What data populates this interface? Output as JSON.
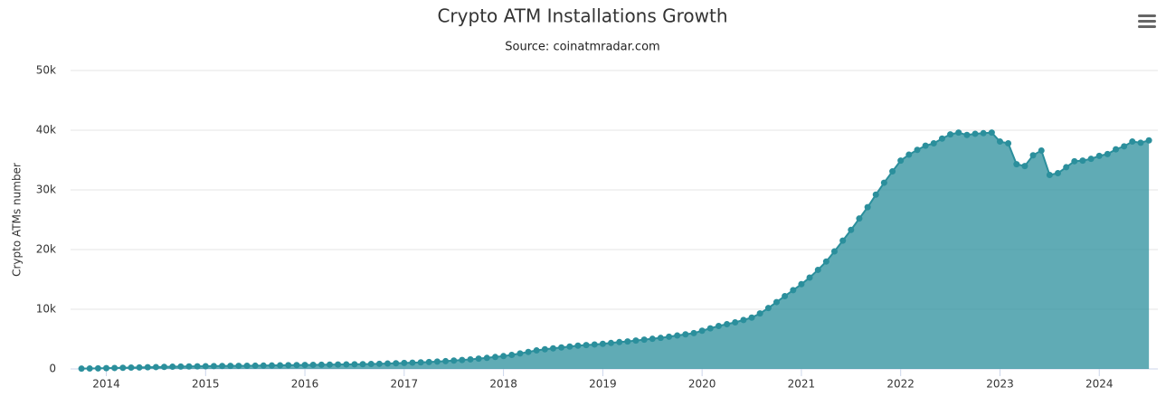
{
  "chart_data": {
    "type": "area",
    "title": "Crypto ATM Installations Growth",
    "subtitle": "Source: coinatmradar.com",
    "y_label": "Crypto ATMs number",
    "x": [
      2013.75,
      2013.833,
      2013.917,
      2014,
      2014.083,
      2014.167,
      2014.25,
      2014.333,
      2014.417,
      2014.5,
      2014.583,
      2014.667,
      2014.75,
      2014.833,
      2014.917,
      2015,
      2015.083,
      2015.167,
      2015.25,
      2015.333,
      2015.417,
      2015.5,
      2015.583,
      2015.667,
      2015.75,
      2015.833,
      2015.917,
      2016,
      2016.083,
      2016.167,
      2016.25,
      2016.333,
      2016.417,
      2016.5,
      2016.583,
      2016.667,
      2016.75,
      2016.833,
      2016.917,
      2017,
      2017.083,
      2017.167,
      2017.25,
      2017.333,
      2017.417,
      2017.5,
      2017.583,
      2017.667,
      2017.75,
      2017.833,
      2017.917,
      2018,
      2018.083,
      2018.167,
      2018.25,
      2018.333,
      2018.417,
      2018.5,
      2018.583,
      2018.667,
      2018.75,
      2018.833,
      2018.917,
      2019,
      2019.083,
      2019.167,
      2019.25,
      2019.333,
      2019.417,
      2019.5,
      2019.583,
      2019.667,
      2019.75,
      2019.833,
      2019.917,
      2020,
      2020.083,
      2020.167,
      2020.25,
      2020.333,
      2020.417,
      2020.5,
      2020.583,
      2020.667,
      2020.75,
      2020.833,
      2020.917,
      2021,
      2021.083,
      2021.167,
      2021.25,
      2021.333,
      2021.417,
      2021.5,
      2021.583,
      2021.667,
      2021.75,
      2021.833,
      2021.917,
      2022,
      2022.083,
      2022.167,
      2022.25,
      2022.333,
      2022.417,
      2022.5,
      2022.583,
      2022.667,
      2022.75,
      2022.833,
      2022.917,
      2023,
      2023.083,
      2023.167,
      2023.25,
      2023.333,
      2023.417,
      2023.5,
      2023.583,
      2023.667,
      2023.75,
      2023.833,
      2023.917,
      2024,
      2024.083,
      2024.167,
      2024.25,
      2024.333,
      2024.417,
      2024.5
    ],
    "series": [
      {
        "color": "#2b8f9c",
        "values": [
          50,
          70,
          100,
          130,
          160,
          190,
          220,
          250,
          280,
          310,
          340,
          370,
          400,
          420,
          440,
          460,
          480,
          500,
          510,
          520,
          530,
          540,
          560,
          580,
          600,
          620,
          640,
          660,
          680,
          700,
          720,
          740,
          760,
          780,
          800,
          830,
          860,
          900,
          950,
          1000,
          1050,
          1100,
          1160,
          1230,
          1300,
          1400,
          1500,
          1600,
          1720,
          1850,
          2000,
          2150,
          2350,
          2600,
          2850,
          3100,
          3300,
          3450,
          3600,
          3750,
          3900,
          4000,
          4100,
          4200,
          4350,
          4500,
          4600,
          4750,
          4900,
          5050,
          5200,
          5400,
          5600,
          5800,
          6000,
          6400,
          6800,
          7200,
          7500,
          7800,
          8200,
          8600,
          9300,
          10200,
          11200,
          12200,
          13200,
          14200,
          15300,
          16600,
          18000,
          19700,
          21500,
          23300,
          25200,
          27100,
          29200,
          31200,
          33100,
          34900,
          35900,
          36700,
          37400,
          37800,
          38600,
          39300,
          39600,
          39200,
          39400,
          39500,
          39600,
          38100,
          37800,
          34300,
          34000,
          35800,
          36600,
          32500,
          32800,
          33800,
          34800,
          34900,
          35200,
          35700,
          36000,
          36800,
          37300,
          38100,
          37900,
          38300
        ]
      }
    ],
    "xlim": [
      2013.64,
      2024.59
    ],
    "xticks": [
      2014,
      2015,
      2016,
      2017,
      2018,
      2019,
      2020,
      2021,
      2022,
      2023,
      2024
    ],
    "ylim": [
      0,
      50000
    ],
    "yticks": [
      0,
      {
        "value": 10000,
        "label": "10k"
      },
      {
        "value": 20000,
        "label": "20k"
      },
      {
        "value": 30000,
        "label": "30k"
      },
      {
        "value": 40000,
        "label": "40k"
      },
      {
        "value": 50000,
        "label": "50k"
      }
    ],
    "grid": true
  }
}
